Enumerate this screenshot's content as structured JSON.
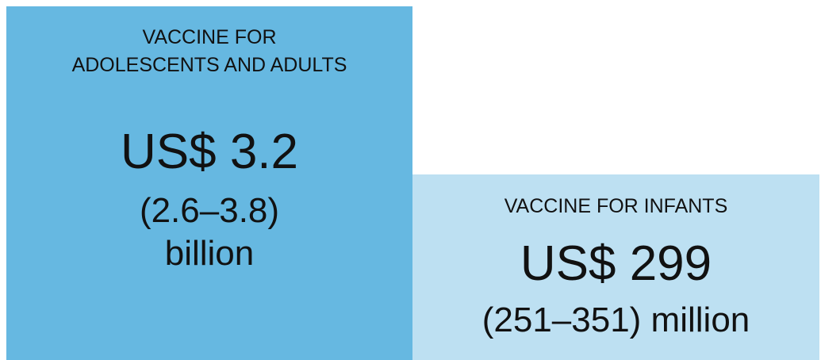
{
  "left": {
    "heading_lines": [
      "VACCINE FOR",
      "ADOLESCENTS AND ADULTS"
    ],
    "amount": "US$ 3.2",
    "range": "(2.6–3.8)",
    "unit": "billion"
  },
  "right": {
    "heading_lines": [
      "VACCINE FOR INFANTS"
    ],
    "amount": "US$ 299",
    "range": "(251–351) million"
  }
}
